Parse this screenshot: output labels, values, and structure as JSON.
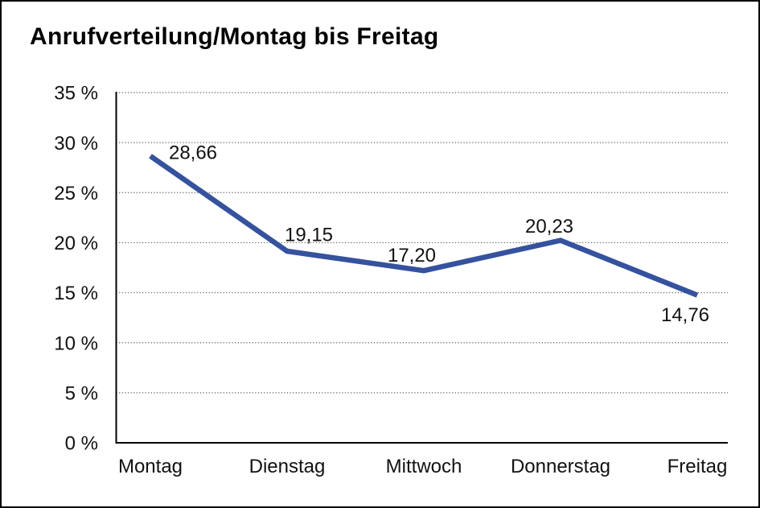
{
  "window": {
    "background": "#ffffff",
    "border_color": "#000000"
  },
  "chart_data": {
    "type": "line",
    "title": "Anrufverteilung/Montag bis Freitag",
    "categories": [
      "Montag",
      "Dienstag",
      "Mittwoch",
      "Donnerstag",
      "Freitag"
    ],
    "values": [
      28.66,
      19.15,
      17.2,
      20.23,
      14.76
    ],
    "value_labels": [
      "28,66",
      "19,15",
      "17,20",
      "20,23",
      "14,76"
    ],
    "xlabel": "",
    "ylabel": "",
    "ylim": [
      0,
      35
    ],
    "ytick_step": 5,
    "ytick_labels": [
      "35 %",
      "30 %",
      "25 %",
      "20 %",
      "15 %",
      "10 %",
      "5 %",
      "0 %"
    ],
    "grid": "horizontal-dotted",
    "legend": "none",
    "colors": {
      "line": "#35529E",
      "grid": "#5a5a5a",
      "axis": "#000000",
      "text": "#111111"
    }
  }
}
